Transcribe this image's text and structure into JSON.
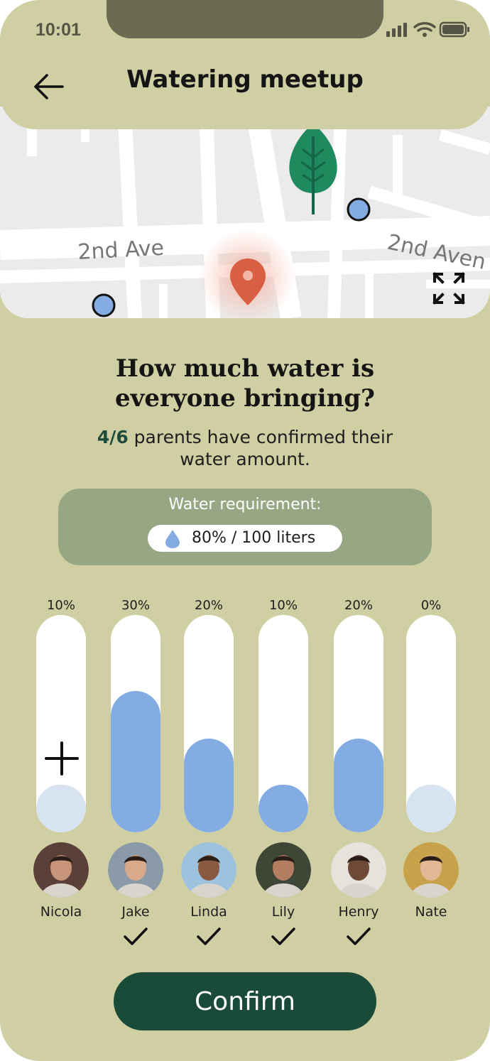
{
  "status_bar": {
    "time": "10:01"
  },
  "header": {
    "title": "Watering meetup"
  },
  "map": {
    "street_label_left": "2nd Ave",
    "street_label_right": "2nd Aven"
  },
  "question": {
    "line1": "How much water is",
    "line2": "everyone bringing?"
  },
  "confirmation": {
    "count": "4/6",
    "text_line1": " parents have confirmed their",
    "text_line2": "water amount."
  },
  "requirement": {
    "label": "Water requirement:",
    "value": "80% / 100 liters"
  },
  "participants": [
    {
      "name": "Nicola",
      "percent_label": "10%",
      "fill_fraction": 0.22,
      "confirmed": false,
      "fill_color": "#d8e3f2",
      "avatar_bg": "#5a4038",
      "avatar_skin": "#c8957a"
    },
    {
      "name": "Jake",
      "percent_label": "30%",
      "fill_fraction": 0.65,
      "confirmed": true,
      "fill_color": "#83ade2",
      "avatar_bg": "#8a9aa8",
      "avatar_skin": "#d9a98a"
    },
    {
      "name": "Linda",
      "percent_label": "20%",
      "fill_fraction": 0.43,
      "confirmed": true,
      "fill_color": "#83ade2",
      "avatar_bg": "#9cc2de",
      "avatar_skin": "#8a5a40"
    },
    {
      "name": "Lily",
      "percent_label": "10%",
      "fill_fraction": 0.22,
      "confirmed": true,
      "fill_color": "#83ade2",
      "avatar_bg": "#3e4636",
      "avatar_skin": "#b57e62"
    },
    {
      "name": "Henry",
      "percent_label": "20%",
      "fill_fraction": 0.43,
      "confirmed": true,
      "fill_color": "#83ade2",
      "avatar_bg": "#e6e2dc",
      "avatar_skin": "#6e4a36"
    },
    {
      "name": "Nate",
      "percent_label": "0%",
      "fill_fraction": 0.22,
      "confirmed": false,
      "fill_color": "#d8e3f2",
      "avatar_bg": "#c8a24a",
      "avatar_skin": "#e2b896"
    }
  ],
  "confirm_button": {
    "label": "Confirm"
  },
  "colors": {
    "background": "#cfcfa3",
    "accent_dark": "#1a4a38",
    "water_blue": "#83ade2",
    "pin_red": "#d95f43",
    "tree_green": "#1e8a5e"
  },
  "icons": {
    "back": "arrow-left-icon",
    "expand": "expand-icon",
    "pin": "location-pin-icon",
    "tree": "tree-icon",
    "drop": "water-drop-icon",
    "plus": "plus-icon",
    "check": "check-icon"
  }
}
